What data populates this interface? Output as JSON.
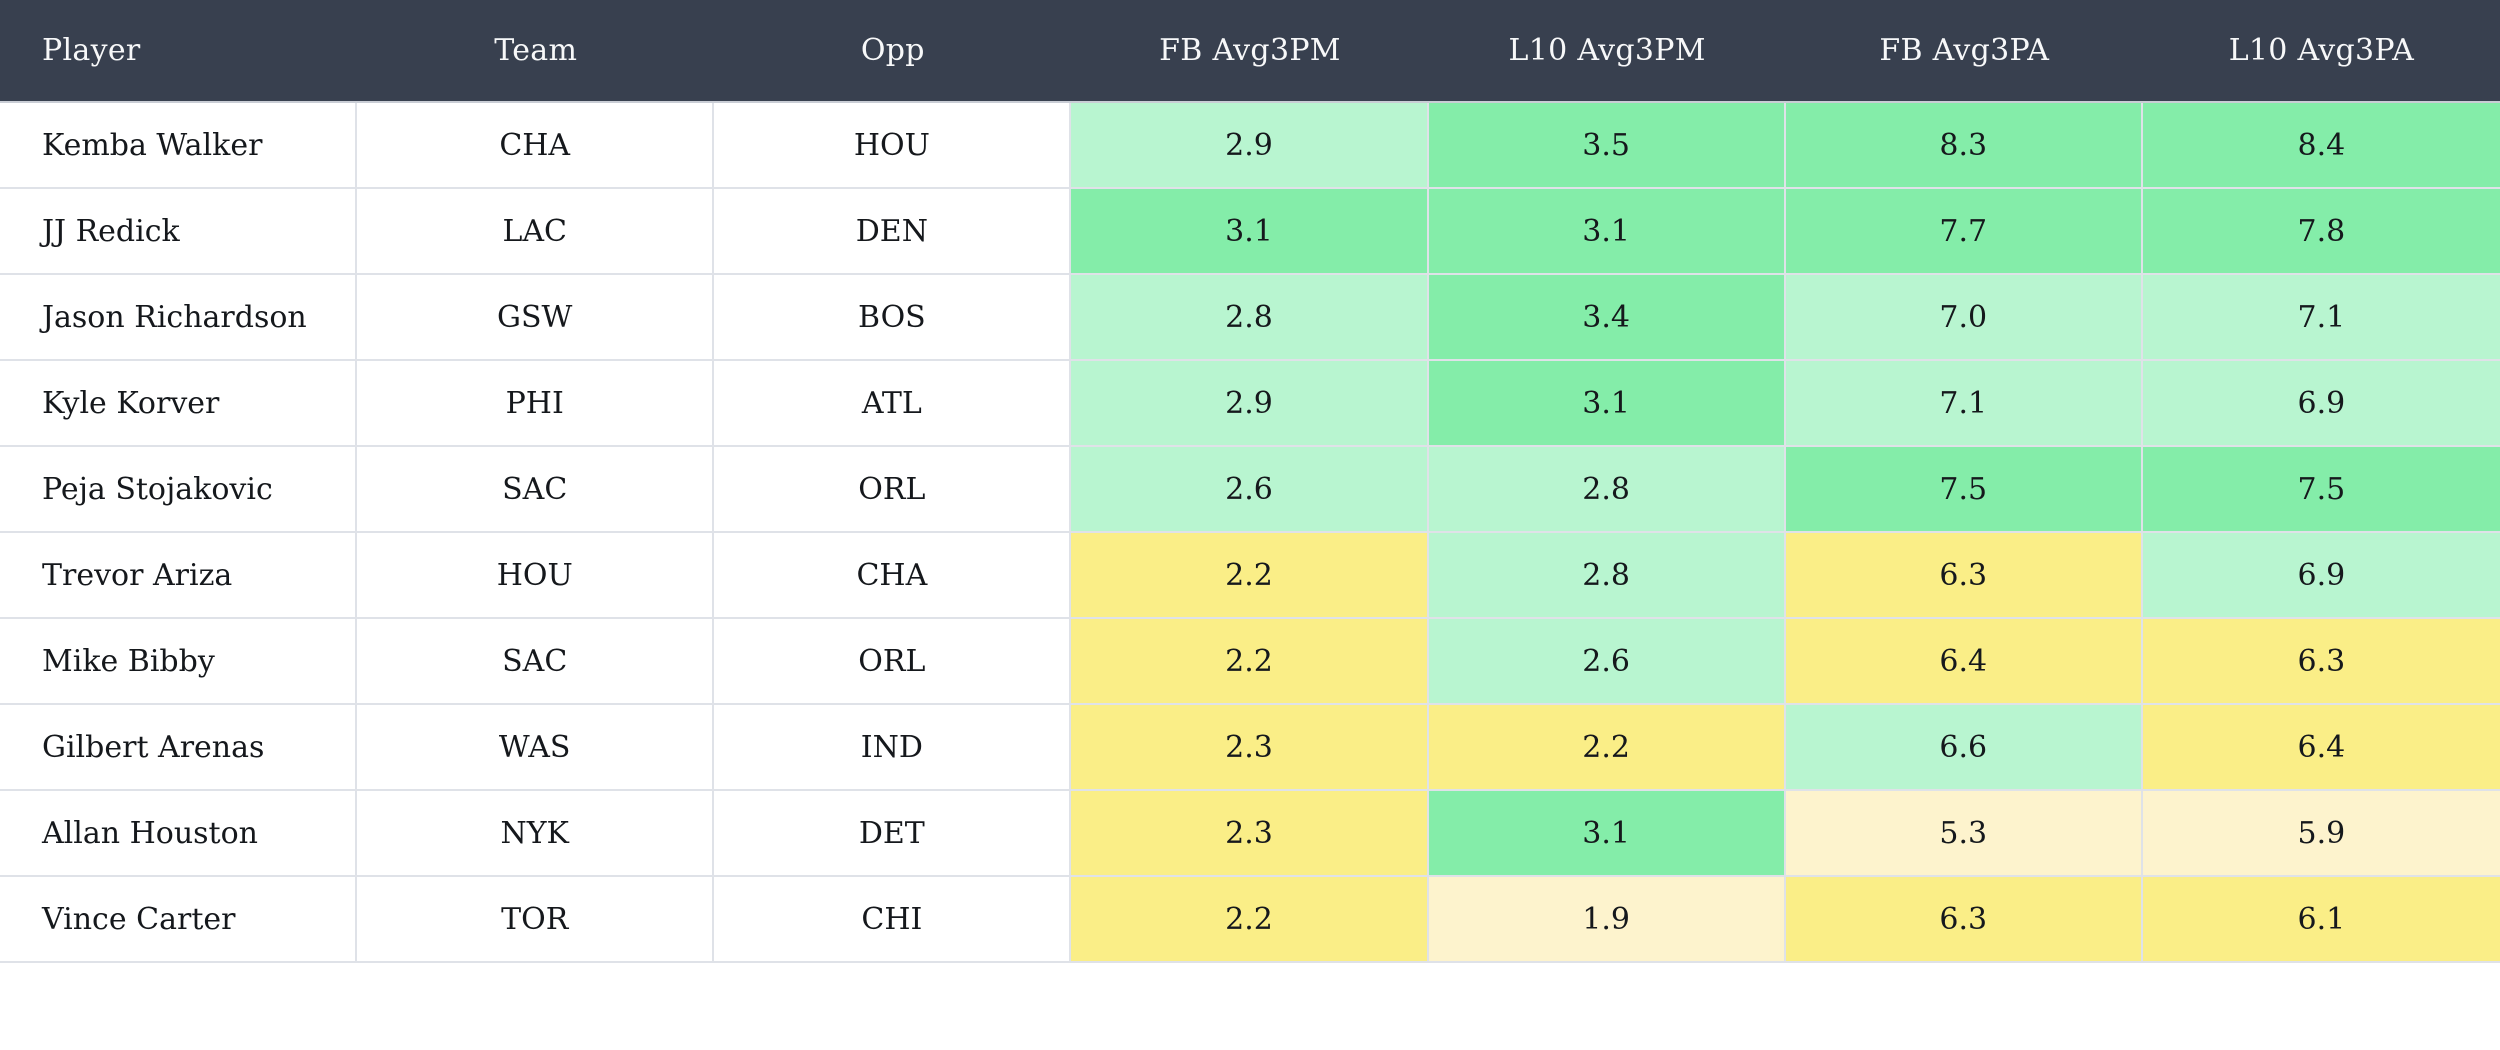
{
  "colors": {
    "header_bg": "#38404f",
    "header_text": "#f7f8f9",
    "border": "#dfe2e8",
    "row_bg": "#ffffff",
    "text": "#15181c",
    "levels": {
      "green": "#84eda9",
      "light_green": "#b8f5d0",
      "yellow": "#faee87",
      "pale_yellow": "#fdf3cd"
    }
  },
  "table": {
    "columns": [
      {
        "key": "player",
        "label": "Player"
      },
      {
        "key": "team",
        "label": "Team"
      },
      {
        "key": "opp",
        "label": "Opp"
      },
      {
        "key": "fb-avg3pm",
        "label": "FB Avg3PM"
      },
      {
        "key": "l10-avg3pm",
        "label": "L10 Avg3PM"
      },
      {
        "key": "fb-avg3pa",
        "label": "FB Avg3PA"
      },
      {
        "key": "l10-avg3pa",
        "label": "L10 Avg3PA"
      }
    ],
    "rows": [
      {
        "player": "Kemba Walker",
        "team": "CHA",
        "opp": "HOU",
        "stats": [
          {
            "value": "2.9",
            "level": "light_green"
          },
          {
            "value": "3.5",
            "level": "green"
          },
          {
            "value": "8.3",
            "level": "green"
          },
          {
            "value": "8.4",
            "level": "green"
          }
        ]
      },
      {
        "player": "JJ Redick",
        "team": "LAC",
        "opp": "DEN",
        "stats": [
          {
            "value": "3.1",
            "level": "green"
          },
          {
            "value": "3.1",
            "level": "green"
          },
          {
            "value": "7.7",
            "level": "green"
          },
          {
            "value": "7.8",
            "level": "green"
          }
        ]
      },
      {
        "player": "Jason Richardson",
        "team": "GSW",
        "opp": "BOS",
        "stats": [
          {
            "value": "2.8",
            "level": "light_green"
          },
          {
            "value": "3.4",
            "level": "green"
          },
          {
            "value": "7.0",
            "level": "light_green"
          },
          {
            "value": "7.1",
            "level": "light_green"
          }
        ]
      },
      {
        "player": "Kyle Korver",
        "team": "PHI",
        "opp": "ATL",
        "stats": [
          {
            "value": "2.9",
            "level": "light_green"
          },
          {
            "value": "3.1",
            "level": "green"
          },
          {
            "value": "7.1",
            "level": "light_green"
          },
          {
            "value": "6.9",
            "level": "light_green"
          }
        ]
      },
      {
        "player": "Peja Stojakovic",
        "team": "SAC",
        "opp": "ORL",
        "stats": [
          {
            "value": "2.6",
            "level": "light_green"
          },
          {
            "value": "2.8",
            "level": "light_green"
          },
          {
            "value": "7.5",
            "level": "green"
          },
          {
            "value": "7.5",
            "level": "green"
          }
        ]
      },
      {
        "player": "Trevor Ariza",
        "team": "HOU",
        "opp": "CHA",
        "stats": [
          {
            "value": "2.2",
            "level": "yellow"
          },
          {
            "value": "2.8",
            "level": "light_green"
          },
          {
            "value": "6.3",
            "level": "yellow"
          },
          {
            "value": "6.9",
            "level": "light_green"
          }
        ]
      },
      {
        "player": "Mike Bibby",
        "team": "SAC",
        "opp": "ORL",
        "stats": [
          {
            "value": "2.2",
            "level": "yellow"
          },
          {
            "value": "2.6",
            "level": "light_green"
          },
          {
            "value": "6.4",
            "level": "yellow"
          },
          {
            "value": "6.3",
            "level": "yellow"
          }
        ]
      },
      {
        "player": "Gilbert Arenas",
        "team": "WAS",
        "opp": "IND",
        "stats": [
          {
            "value": "2.3",
            "level": "yellow"
          },
          {
            "value": "2.2",
            "level": "yellow"
          },
          {
            "value": "6.6",
            "level": "light_green"
          },
          {
            "value": "6.4",
            "level": "yellow"
          }
        ]
      },
      {
        "player": "Allan Houston",
        "team": "NYK",
        "opp": "DET",
        "stats": [
          {
            "value": "2.3",
            "level": "yellow"
          },
          {
            "value": "3.1",
            "level": "green"
          },
          {
            "value": "5.3",
            "level": "pale_yellow"
          },
          {
            "value": "5.9",
            "level": "pale_yellow"
          }
        ]
      },
      {
        "player": "Vince Carter",
        "team": "TOR",
        "opp": "CHI",
        "stats": [
          {
            "value": "2.2",
            "level": "yellow"
          },
          {
            "value": "1.9",
            "level": "pale_yellow"
          },
          {
            "value": "6.3",
            "level": "yellow"
          },
          {
            "value": "6.1",
            "level": "yellow"
          }
        ]
      }
    ]
  }
}
